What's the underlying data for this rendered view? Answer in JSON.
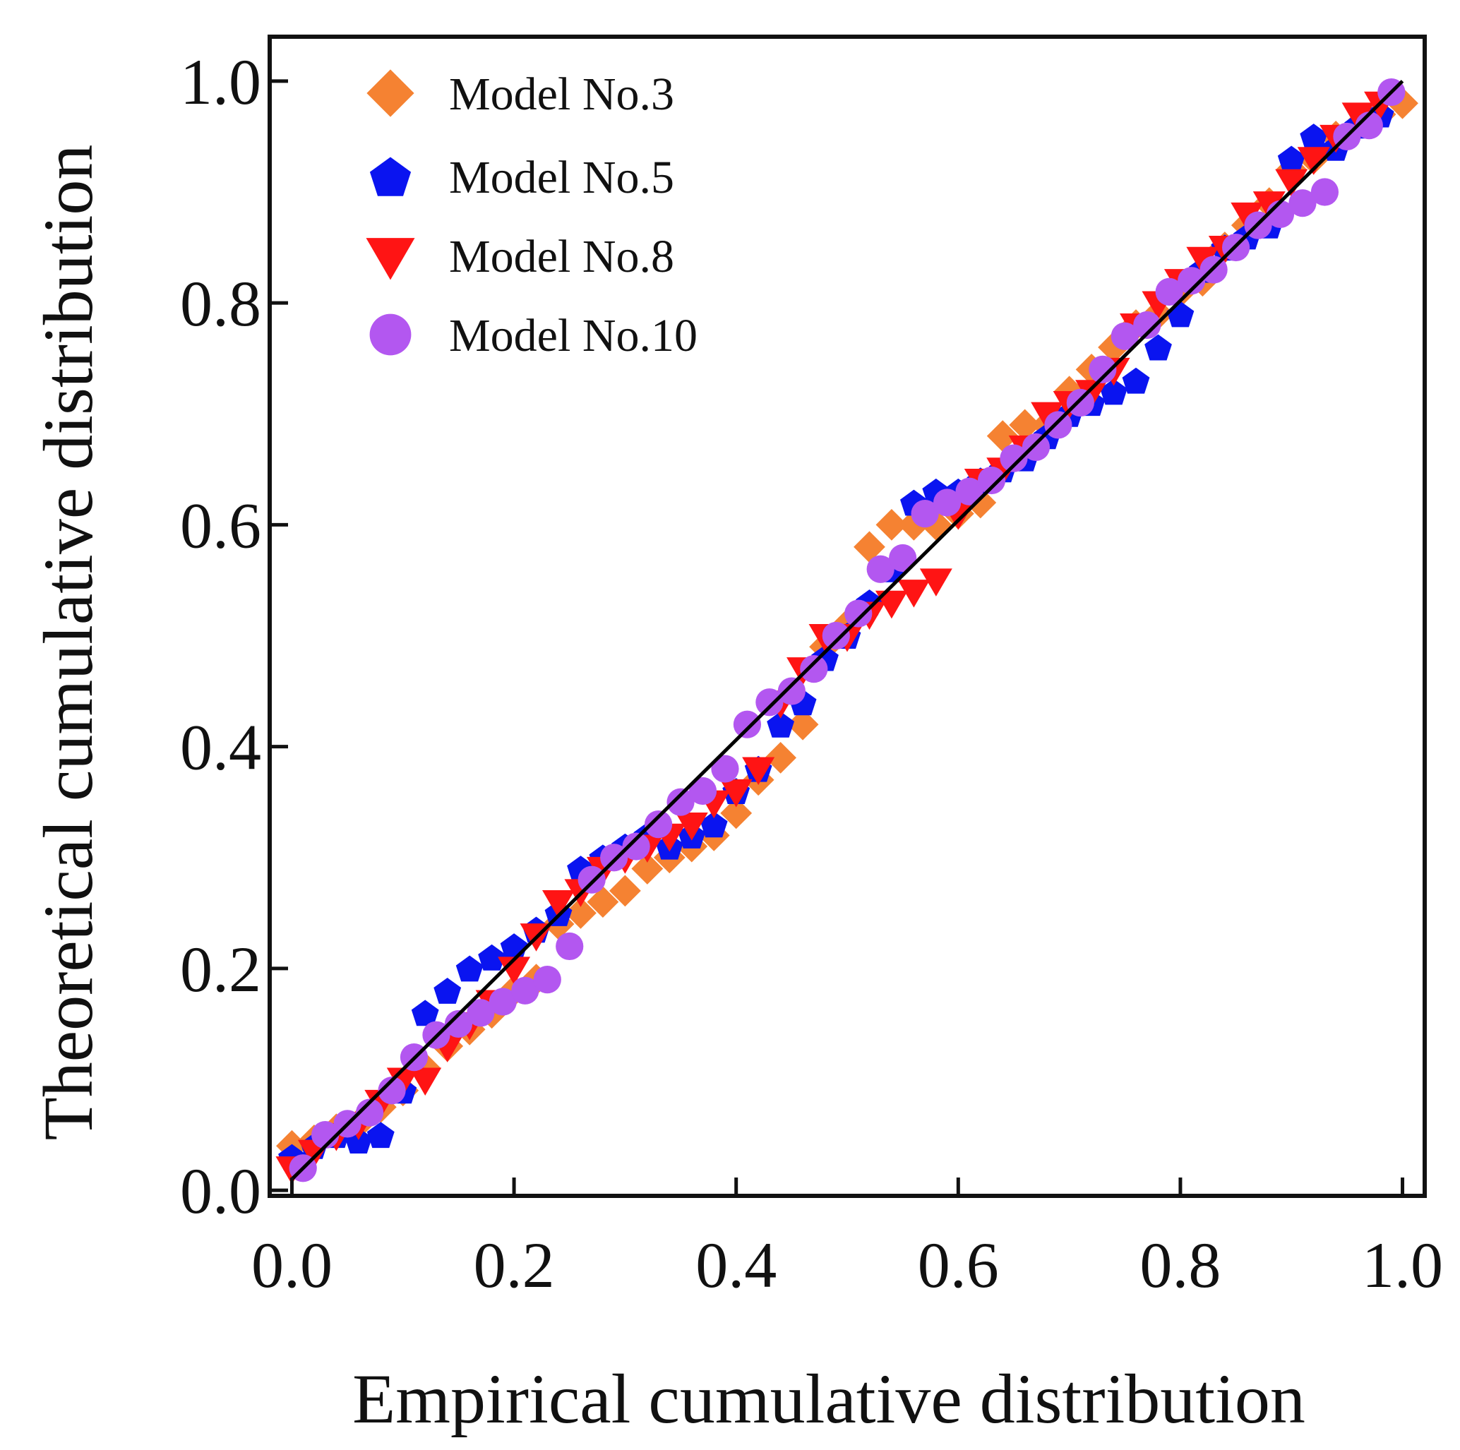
{
  "chart_data": {
    "type": "scatter",
    "xlabel": "Empirical cumulative distribution",
    "ylabel": "Theoretical cumulative distribution",
    "xlim": [
      -0.02,
      1.02
    ],
    "ylim": [
      -0.005,
      1.04
    ],
    "x_ticks": [
      0.0,
      0.2,
      0.4,
      0.6,
      0.8,
      1.0
    ],
    "y_ticks": [
      0.0,
      0.2,
      0.4,
      0.6,
      0.8,
      1.0
    ],
    "x_tick_labels": [
      "0.0",
      "0.2",
      "0.4",
      "0.6",
      "0.8",
      "1.0"
    ],
    "y_tick_labels": [
      "0.0",
      "0.2",
      "0.4",
      "0.6",
      "0.8",
      "1.0"
    ],
    "legend_position": "top-left",
    "reference_line": {
      "name": "y = x",
      "x": [
        0.0,
        1.0
      ],
      "y": [
        0.01,
        1.0
      ]
    },
    "series": [
      {
        "name": "Model No.3",
        "marker": "diamond",
        "color": "#f58232",
        "points": [
          [
            0.0,
            0.04
          ],
          [
            0.02,
            0.045
          ],
          [
            0.04,
            0.055
          ],
          [
            0.06,
            0.06
          ],
          [
            0.08,
            0.075
          ],
          [
            0.1,
            0.09
          ],
          [
            0.12,
            0.11
          ],
          [
            0.14,
            0.13
          ],
          [
            0.16,
            0.145
          ],
          [
            0.18,
            0.16
          ],
          [
            0.2,
            0.18
          ],
          [
            0.22,
            0.19
          ],
          [
            0.24,
            0.24
          ],
          [
            0.26,
            0.25
          ],
          [
            0.28,
            0.26
          ],
          [
            0.3,
            0.27
          ],
          [
            0.32,
            0.29
          ],
          [
            0.34,
            0.3
          ],
          [
            0.36,
            0.31
          ],
          [
            0.38,
            0.32
          ],
          [
            0.4,
            0.34
          ],
          [
            0.42,
            0.37
          ],
          [
            0.44,
            0.39
          ],
          [
            0.46,
            0.42
          ],
          [
            0.48,
            0.49
          ],
          [
            0.5,
            0.51
          ],
          [
            0.52,
            0.58
          ],
          [
            0.54,
            0.6
          ],
          [
            0.56,
            0.6
          ],
          [
            0.58,
            0.6
          ],
          [
            0.6,
            0.61
          ],
          [
            0.62,
            0.62
          ],
          [
            0.64,
            0.68
          ],
          [
            0.66,
            0.69
          ],
          [
            0.68,
            0.69
          ],
          [
            0.7,
            0.72
          ],
          [
            0.72,
            0.74
          ],
          [
            0.74,
            0.76
          ],
          [
            0.76,
            0.78
          ],
          [
            0.78,
            0.79
          ],
          [
            0.8,
            0.81
          ],
          [
            0.82,
            0.82
          ],
          [
            0.84,
            0.85
          ],
          [
            0.86,
            0.87
          ],
          [
            0.88,
            0.89
          ],
          [
            0.9,
            0.92
          ],
          [
            0.92,
            0.93
          ],
          [
            0.94,
            0.95
          ],
          [
            0.96,
            0.96
          ],
          [
            0.98,
            0.97
          ],
          [
            1.0,
            0.98
          ]
        ]
      },
      {
        "name": "Model No.5",
        "marker": "pentagon",
        "color": "#0a14f0",
        "points": [
          [
            0.0,
            0.03
          ],
          [
            0.02,
            0.04
          ],
          [
            0.04,
            0.05
          ],
          [
            0.06,
            0.045
          ],
          [
            0.08,
            0.05
          ],
          [
            0.1,
            0.09
          ],
          [
            0.12,
            0.16
          ],
          [
            0.14,
            0.18
          ],
          [
            0.16,
            0.2
          ],
          [
            0.18,
            0.21
          ],
          [
            0.2,
            0.22
          ],
          [
            0.22,
            0.235
          ],
          [
            0.24,
            0.25
          ],
          [
            0.26,
            0.29
          ],
          [
            0.28,
            0.3
          ],
          [
            0.3,
            0.31
          ],
          [
            0.32,
            0.32
          ],
          [
            0.34,
            0.31
          ],
          [
            0.36,
            0.32
          ],
          [
            0.38,
            0.33
          ],
          [
            0.4,
            0.36
          ],
          [
            0.42,
            0.38
          ],
          [
            0.44,
            0.42
          ],
          [
            0.46,
            0.44
          ],
          [
            0.48,
            0.48
          ],
          [
            0.5,
            0.5
          ],
          [
            0.52,
            0.53
          ],
          [
            0.54,
            0.56
          ],
          [
            0.56,
            0.62
          ],
          [
            0.58,
            0.63
          ],
          [
            0.6,
            0.63
          ],
          [
            0.62,
            0.64
          ],
          [
            0.64,
            0.65
          ],
          [
            0.66,
            0.66
          ],
          [
            0.68,
            0.68
          ],
          [
            0.7,
            0.7
          ],
          [
            0.72,
            0.71
          ],
          [
            0.74,
            0.72
          ],
          [
            0.76,
            0.73
          ],
          [
            0.78,
            0.76
          ],
          [
            0.8,
            0.79
          ],
          [
            0.82,
            0.83
          ],
          [
            0.84,
            0.85
          ],
          [
            0.86,
            0.86
          ],
          [
            0.88,
            0.87
          ],
          [
            0.9,
            0.93
          ],
          [
            0.92,
            0.95
          ],
          [
            0.94,
            0.94
          ],
          [
            0.96,
            0.96
          ],
          [
            0.98,
            0.97
          ]
        ]
      },
      {
        "name": "Model No.8",
        "marker": "triangle-down",
        "color": "#ff1414",
        "points": [
          [
            0.0,
            0.02
          ],
          [
            0.02,
            0.035
          ],
          [
            0.04,
            0.05
          ],
          [
            0.06,
            0.06
          ],
          [
            0.08,
            0.08
          ],
          [
            0.1,
            0.1
          ],
          [
            0.12,
            0.1
          ],
          [
            0.14,
            0.13
          ],
          [
            0.16,
            0.15
          ],
          [
            0.18,
            0.17
          ],
          [
            0.2,
            0.2
          ],
          [
            0.22,
            0.23
          ],
          [
            0.24,
            0.26
          ],
          [
            0.26,
            0.27
          ],
          [
            0.28,
            0.29
          ],
          [
            0.3,
            0.3
          ],
          [
            0.32,
            0.31
          ],
          [
            0.34,
            0.32
          ],
          [
            0.36,
            0.33
          ],
          [
            0.38,
            0.35
          ],
          [
            0.4,
            0.36
          ],
          [
            0.42,
            0.38
          ],
          [
            0.44,
            0.44
          ],
          [
            0.46,
            0.47
          ],
          [
            0.48,
            0.5
          ],
          [
            0.5,
            0.5
          ],
          [
            0.52,
            0.52
          ],
          [
            0.54,
            0.53
          ],
          [
            0.56,
            0.54
          ],
          [
            0.58,
            0.55
          ],
          [
            0.6,
            0.61
          ],
          [
            0.62,
            0.64
          ],
          [
            0.64,
            0.65
          ],
          [
            0.66,
            0.67
          ],
          [
            0.68,
            0.7
          ],
          [
            0.7,
            0.71
          ],
          [
            0.72,
            0.72
          ],
          [
            0.74,
            0.74
          ],
          [
            0.76,
            0.78
          ],
          [
            0.78,
            0.8
          ],
          [
            0.8,
            0.82
          ],
          [
            0.82,
            0.84
          ],
          [
            0.84,
            0.85
          ],
          [
            0.86,
            0.88
          ],
          [
            0.88,
            0.89
          ],
          [
            0.9,
            0.91
          ],
          [
            0.92,
            0.93
          ],
          [
            0.94,
            0.95
          ],
          [
            0.96,
            0.97
          ],
          [
            0.98,
            0.98
          ]
        ]
      },
      {
        "name": "Model No.10",
        "marker": "circle",
        "color": "#b357f0",
        "points": [
          [
            0.01,
            0.02
          ],
          [
            0.03,
            0.05
          ],
          [
            0.05,
            0.06
          ],
          [
            0.07,
            0.07
          ],
          [
            0.09,
            0.09
          ],
          [
            0.11,
            0.12
          ],
          [
            0.13,
            0.14
          ],
          [
            0.15,
            0.15
          ],
          [
            0.17,
            0.16
          ],
          [
            0.19,
            0.17
          ],
          [
            0.21,
            0.18
          ],
          [
            0.23,
            0.19
          ],
          [
            0.25,
            0.22
          ],
          [
            0.27,
            0.28
          ],
          [
            0.29,
            0.3
          ],
          [
            0.31,
            0.31
          ],
          [
            0.33,
            0.33
          ],
          [
            0.35,
            0.35
          ],
          [
            0.37,
            0.36
          ],
          [
            0.39,
            0.38
          ],
          [
            0.41,
            0.42
          ],
          [
            0.43,
            0.44
          ],
          [
            0.45,
            0.45
          ],
          [
            0.47,
            0.47
          ],
          [
            0.49,
            0.5
          ],
          [
            0.51,
            0.52
          ],
          [
            0.53,
            0.56
          ],
          [
            0.55,
            0.57
          ],
          [
            0.57,
            0.61
          ],
          [
            0.59,
            0.62
          ],
          [
            0.61,
            0.63
          ],
          [
            0.63,
            0.64
          ],
          [
            0.65,
            0.66
          ],
          [
            0.67,
            0.67
          ],
          [
            0.69,
            0.69
          ],
          [
            0.71,
            0.71
          ],
          [
            0.73,
            0.74
          ],
          [
            0.75,
            0.77
          ],
          [
            0.77,
            0.78
          ],
          [
            0.79,
            0.81
          ],
          [
            0.81,
            0.82
          ],
          [
            0.83,
            0.83
          ],
          [
            0.85,
            0.85
          ],
          [
            0.87,
            0.87
          ],
          [
            0.89,
            0.88
          ],
          [
            0.91,
            0.89
          ],
          [
            0.93,
            0.9
          ],
          [
            0.95,
            0.95
          ],
          [
            0.97,
            0.96
          ],
          [
            0.99,
            0.99
          ]
        ]
      }
    ]
  }
}
